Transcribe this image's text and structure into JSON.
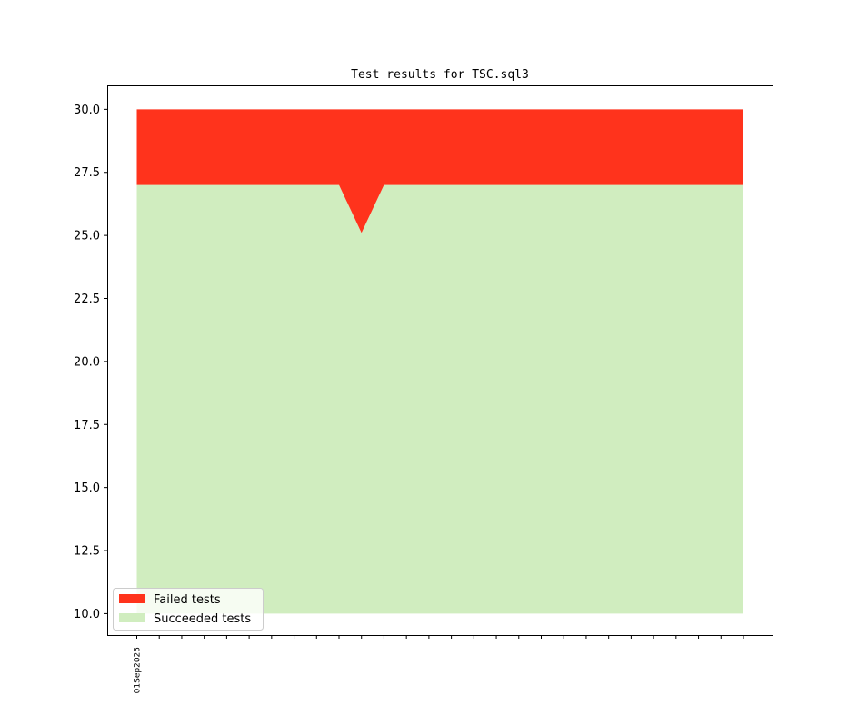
{
  "chart_data": {
    "type": "area",
    "title": "Test results for TSC.sql3",
    "xlabel": "",
    "ylabel": "",
    "x_tick_labels": [
      "01Sep2025"
    ],
    "x_points": 28,
    "ylim": [
      9.15,
      30.95
    ],
    "yticks": [
      "10.0",
      "12.5",
      "15.0",
      "17.5",
      "20.0",
      "22.5",
      "25.0",
      "27.5",
      "30.0"
    ],
    "baseline": 10.0,
    "series": [
      {
        "name": "Succeeded tests",
        "color": "#d0edbf",
        "values": [
          27,
          27,
          27,
          27,
          27,
          27,
          27,
          27,
          27,
          27,
          25.1,
          27,
          27,
          27,
          27,
          27,
          27,
          27,
          27,
          27,
          27,
          27,
          27,
          27,
          27,
          27,
          27,
          27
        ]
      },
      {
        "name": "Failed tests",
        "color": "#ff331c",
        "values": [
          3,
          3,
          3,
          3,
          3,
          3,
          3,
          3,
          3,
          3,
          4.9,
          3,
          3,
          3,
          3,
          3,
          3,
          3,
          3,
          3,
          3,
          3,
          3,
          3,
          3,
          3,
          3,
          3
        ]
      }
    ],
    "legend": {
      "position": "lower-left",
      "entries": [
        "Failed tests",
        "Succeeded tests"
      ]
    },
    "grid": false
  }
}
